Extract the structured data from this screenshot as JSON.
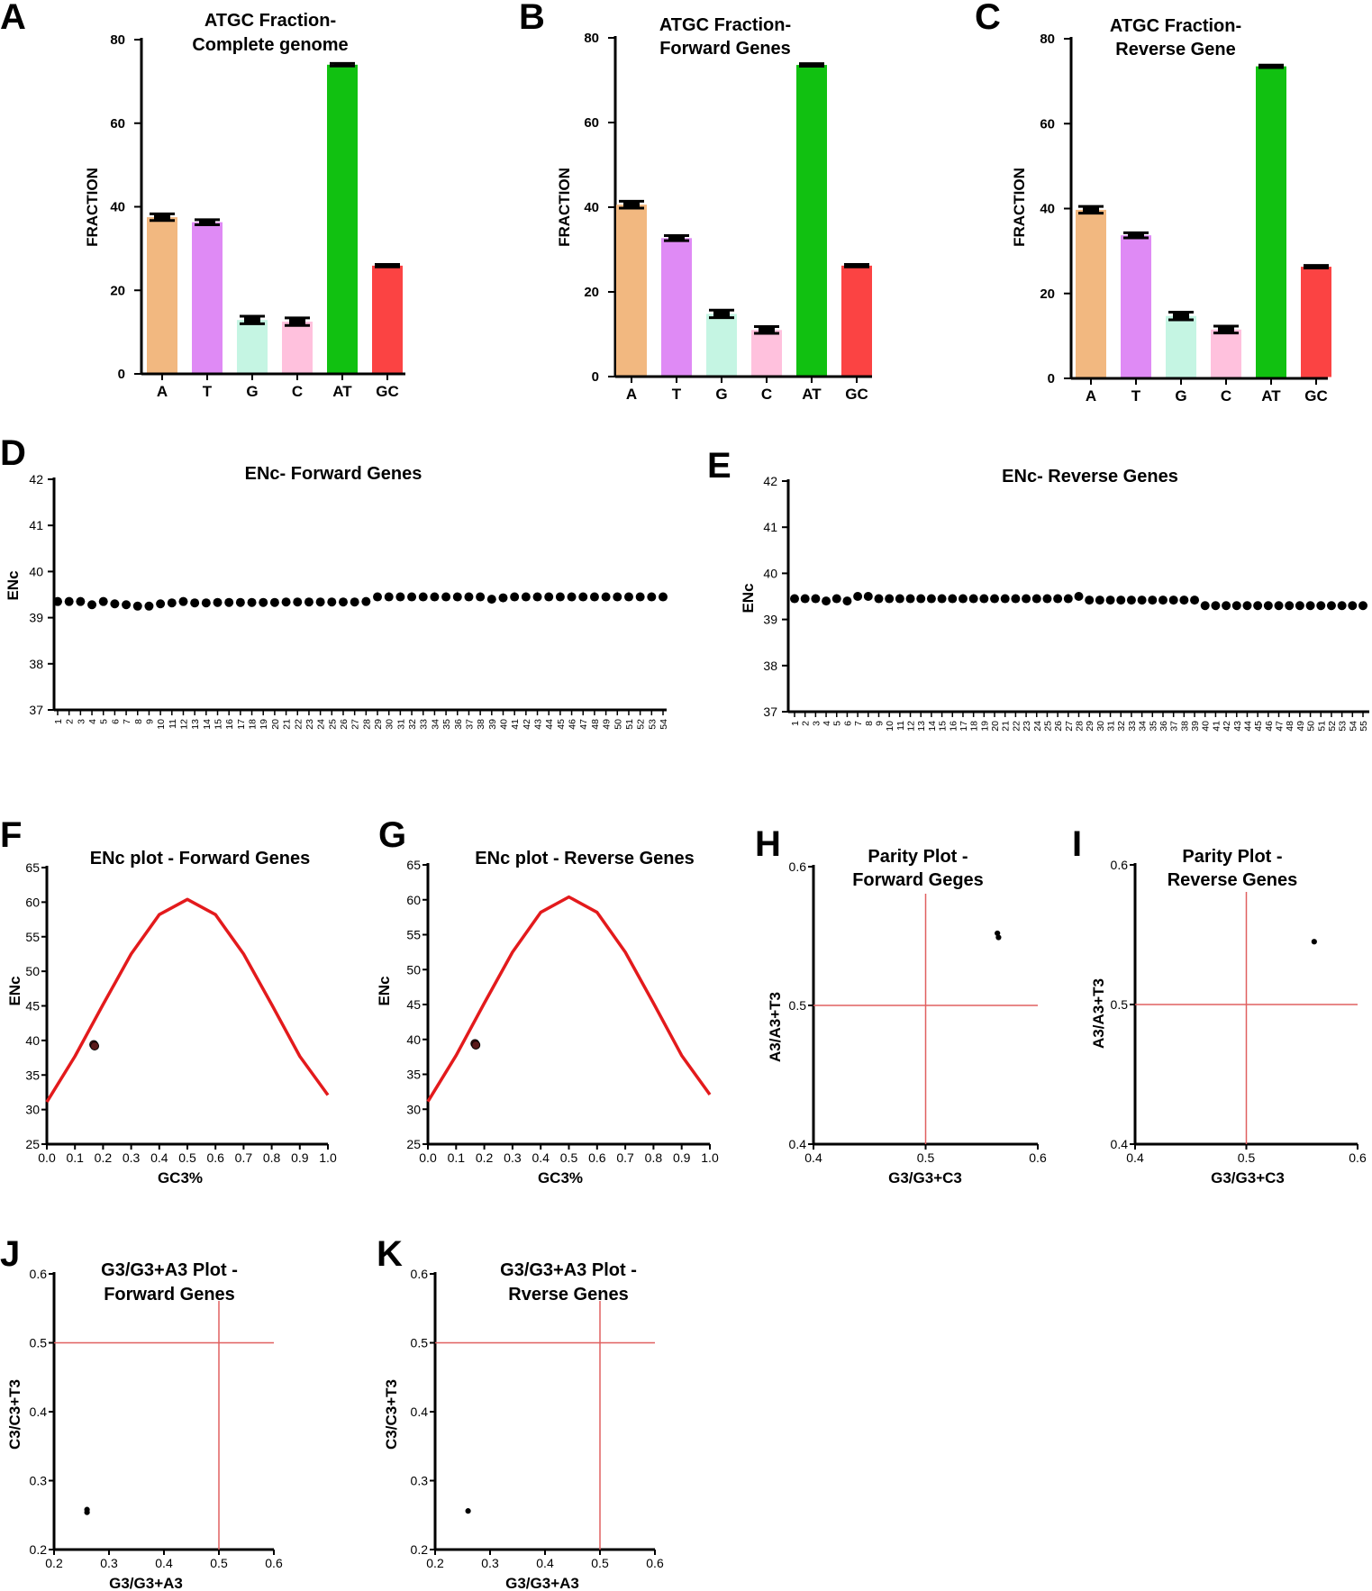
{
  "chart_data": [
    {
      "panel": "A",
      "type": "bar",
      "title": [
        "ATGC Fraction-",
        "Complete genome"
      ],
      "ylabel": "FRACTION",
      "ylim": [
        0,
        80
      ],
      "yticks": [
        0,
        20,
        40,
        60,
        80
      ],
      "categories": [
        "A",
        "T",
        "G",
        "C",
        "AT",
        "GC"
      ],
      "values": [
        37.5,
        36.3,
        12.9,
        12.5,
        74.0,
        25.9
      ],
      "errors": [
        0.8,
        0.6,
        0.9,
        0.9,
        0.3,
        0.3
      ],
      "colors": [
        "#f2b880",
        "#df8af5",
        "#c5f5e3",
        "#ffc1dd",
        "#11c111",
        "#fb4343"
      ]
    },
    {
      "panel": "B",
      "type": "bar",
      "title": [
        "ATGC Fraction-",
        "Forward Genes"
      ],
      "ylabel": "FRACTION",
      "ylim": [
        0,
        80
      ],
      "yticks": [
        0,
        20,
        40,
        60,
        80
      ],
      "categories": [
        "A",
        "T",
        "G",
        "C",
        "AT",
        "GC"
      ],
      "values": [
        40.6,
        32.7,
        14.8,
        11.0,
        73.6,
        26.2
      ],
      "errors": [
        0.8,
        0.6,
        0.9,
        0.8,
        0.3,
        0.3
      ],
      "colors": [
        "#f2b880",
        "#df8af5",
        "#c5f5e3",
        "#ffc1dd",
        "#11c111",
        "#fb4343"
      ]
    },
    {
      "panel": "C",
      "type": "bar",
      "title": [
        "ATGC Fraction-",
        "Reverse Gene"
      ],
      "ylabel": "FRACTION",
      "ylim": [
        0,
        80
      ],
      "yticks": [
        0,
        20,
        40,
        60,
        80
      ],
      "categories": [
        "A",
        "T",
        "G",
        "C",
        "AT",
        "GC"
      ],
      "values": [
        39.7,
        33.7,
        14.7,
        11.5,
        73.5,
        26.3
      ],
      "errors": [
        0.8,
        0.6,
        0.9,
        0.8,
        0.3,
        0.3
      ],
      "colors": [
        "#f2b880",
        "#df8af5",
        "#c5f5e3",
        "#ffc1dd",
        "#11c111",
        "#fb4343"
      ]
    },
    {
      "panel": "D",
      "type": "scatter",
      "title": "ENc- Forward Genes",
      "ylabel": "ENc",
      "ylim": [
        37,
        42
      ],
      "yticks": [
        37,
        38,
        39,
        40,
        41,
        42
      ],
      "x": [
        1,
        2,
        3,
        4,
        5,
        6,
        7,
        8,
        9,
        10,
        11,
        12,
        13,
        14,
        15,
        16,
        17,
        18,
        19,
        20,
        21,
        22,
        23,
        24,
        25,
        26,
        27,
        28,
        29,
        30,
        31,
        32,
        33,
        34,
        35,
        36,
        37,
        38,
        39,
        40,
        41,
        42,
        43,
        44,
        45,
        46,
        47,
        48,
        49,
        50,
        51,
        52,
        53,
        54
      ],
      "values": [
        39.35,
        39.35,
        39.35,
        39.28,
        39.35,
        39.3,
        39.28,
        39.25,
        39.25,
        39.3,
        39.32,
        39.35,
        39.32,
        39.32,
        39.33,
        39.33,
        39.33,
        39.33,
        39.33,
        39.33,
        39.34,
        39.34,
        39.34,
        39.34,
        39.34,
        39.34,
        39.34,
        39.35,
        39.45,
        39.45,
        39.45,
        39.45,
        39.45,
        39.45,
        39.45,
        39.45,
        39.45,
        39.45,
        39.4,
        39.43,
        39.45,
        39.45,
        39.45,
        39.45,
        39.45,
        39.45,
        39.45,
        39.45,
        39.45,
        39.45,
        39.45,
        39.45,
        39.45,
        39.45
      ]
    },
    {
      "panel": "E",
      "type": "scatter",
      "title": "ENc- Reverse Genes",
      "ylabel": "ENc",
      "ylim": [
        37,
        42
      ],
      "yticks": [
        37,
        38,
        39,
        40,
        41,
        42
      ],
      "x": [
        1,
        2,
        3,
        4,
        5,
        6,
        7,
        8,
        9,
        10,
        11,
        12,
        13,
        14,
        15,
        16,
        17,
        18,
        19,
        20,
        21,
        22,
        23,
        24,
        25,
        26,
        27,
        28,
        29,
        30,
        31,
        32,
        33,
        34,
        35,
        36,
        37,
        38,
        39,
        40,
        41,
        42,
        43,
        44,
        45,
        46,
        47,
        48,
        49,
        50,
        51,
        52,
        53,
        54,
        55
      ],
      "values": [
        39.45,
        39.45,
        39.45,
        39.4,
        39.45,
        39.4,
        39.5,
        39.5,
        39.45,
        39.45,
        39.45,
        39.45,
        39.45,
        39.45,
        39.45,
        39.45,
        39.45,
        39.45,
        39.45,
        39.45,
        39.45,
        39.45,
        39.45,
        39.45,
        39.45,
        39.45,
        39.45,
        39.5,
        39.42,
        39.42,
        39.42,
        39.42,
        39.42,
        39.42,
        39.42,
        39.42,
        39.42,
        39.42,
        39.42,
        39.3,
        39.3,
        39.3,
        39.3,
        39.3,
        39.3,
        39.3,
        39.3,
        39.3,
        39.3,
        39.3,
        39.3,
        39.3,
        39.3,
        39.3,
        39.3
      ]
    },
    {
      "panel": "F",
      "type": "scatter",
      "title": "ENc plot - Forward Genes",
      "xlabel": "GC3%",
      "ylabel": "ENc",
      "xlim": [
        0,
        1
      ],
      "ylim": [
        25,
        65
      ],
      "xticks": [
        "0.0",
        "0.1",
        "0.2",
        "0.3",
        "0.4",
        "0.5",
        "0.6",
        "0.7",
        "0.8",
        "0.9",
        "1.0"
      ],
      "yticks": [
        25,
        30,
        35,
        40,
        45,
        50,
        55,
        60,
        65
      ],
      "expected_curve": {
        "x": [
          0,
          0.1,
          0.2,
          0.3,
          0.4,
          0.5,
          0.6,
          0.7,
          0.8,
          0.9,
          1.0
        ],
        "y": [
          31.1,
          37.7,
          45.2,
          52.5,
          58.2,
          60.4,
          58.2,
          52.5,
          45.2,
          37.7,
          32.1
        ],
        "color": "#e31a1c"
      },
      "points": [
        {
          "x": 0.167,
          "y": 39.4
        },
        {
          "x": 0.17,
          "y": 39.2
        }
      ]
    },
    {
      "panel": "G",
      "type": "scatter",
      "title": "ENc plot - Reverse Genes",
      "xlabel": "GC3%",
      "ylabel": "ENc",
      "xlim": [
        0,
        1
      ],
      "ylim": [
        25,
        65
      ],
      "xticks": [
        "0.0",
        "0.1",
        "0.2",
        "0.3",
        "0.4",
        "0.5",
        "0.6",
        "0.7",
        "0.8",
        "0.9",
        "1.0"
      ],
      "yticks": [
        25,
        30,
        35,
        40,
        45,
        50,
        55,
        60,
        65
      ],
      "expected_curve": {
        "x": [
          0,
          0.1,
          0.2,
          0.3,
          0.4,
          0.5,
          0.6,
          0.7,
          0.8,
          0.9,
          1.0
        ],
        "y": [
          31.1,
          37.7,
          45.2,
          52.5,
          58.2,
          60.4,
          58.2,
          52.5,
          45.2,
          37.7,
          32.1
        ],
        "color": "#e31a1c"
      },
      "points": [
        {
          "x": 0.167,
          "y": 39.4
        },
        {
          "x": 0.17,
          "y": 39.2
        }
      ]
    },
    {
      "panel": "H",
      "type": "scatter",
      "title": [
        "Parity Plot -",
        "Forward Geges"
      ],
      "xlabel": "G3/G3+C3",
      "ylabel": "A3/A3+T3",
      "xlim": [
        0.4,
        0.6
      ],
      "ylim": [
        0.4,
        0.6
      ],
      "xticks": [
        "0.4",
        "0.5",
        "0.6"
      ],
      "yticks": [
        "0.4",
        "0.5",
        "0.6"
      ],
      "ref_lines": {
        "x": 0.5,
        "y": 0.5,
        "color": "#e06060"
      },
      "points": [
        {
          "x": 0.565,
          "y": 0.549
        },
        {
          "x": 0.564,
          "y": 0.552
        }
      ]
    },
    {
      "panel": "I",
      "type": "scatter",
      "title": [
        "Parity Plot -",
        "Reverse Genes"
      ],
      "xlabel": "G3/G3+C3",
      "ylabel": "A3/A3+T3",
      "xlim": [
        0.4,
        0.6
      ],
      "ylim": [
        0.4,
        0.6
      ],
      "xticks": [
        "0.4",
        "0.5",
        "0.6"
      ],
      "yticks": [
        "0.4",
        "0.5",
        "0.6"
      ],
      "ref_lines": {
        "x": 0.5,
        "y": 0.5,
        "color": "#e06060"
      },
      "points": [
        {
          "x": 0.561,
          "y": 0.545
        }
      ]
    },
    {
      "panel": "J",
      "type": "scatter",
      "title": [
        "G3/G3+A3 Plot -",
        "Forward Genes"
      ],
      "xlabel": "G3/G3+A3",
      "ylabel": "C3/C3+T3",
      "xlim": [
        0.2,
        0.6
      ],
      "ylim": [
        0.2,
        0.6
      ],
      "xticks": [
        "0.2",
        "0.3",
        "0.4",
        "0.5",
        "0.6"
      ],
      "yticks": [
        "0.2",
        "0.3",
        "0.4",
        "0.5",
        "0.6"
      ],
      "ref_lines": {
        "x": 0.5,
        "y": 0.5,
        "color": "#e06060"
      },
      "points": [
        {
          "x": 0.26,
          "y": 0.254
        },
        {
          "x": 0.26,
          "y": 0.258
        }
      ]
    },
    {
      "panel": "K",
      "type": "scatter",
      "title": [
        "G3/G3+A3 Plot -",
        "Rverse Genes"
      ],
      "xlabel": "G3/G3+A3",
      "ylabel": "C3/C3+T3",
      "xlim": [
        0.2,
        0.6
      ],
      "ylim": [
        0.2,
        0.6
      ],
      "xticks": [
        "0.2",
        "0.3",
        "0.4",
        "0.5",
        "0.6"
      ],
      "yticks": [
        "0.2",
        "0.3",
        "0.4",
        "0.5",
        "0.6"
      ],
      "ref_lines": {
        "x": 0.5,
        "y": 0.5,
        "color": "#e06060"
      },
      "points": [
        {
          "x": 0.26,
          "y": 0.256
        }
      ]
    }
  ]
}
